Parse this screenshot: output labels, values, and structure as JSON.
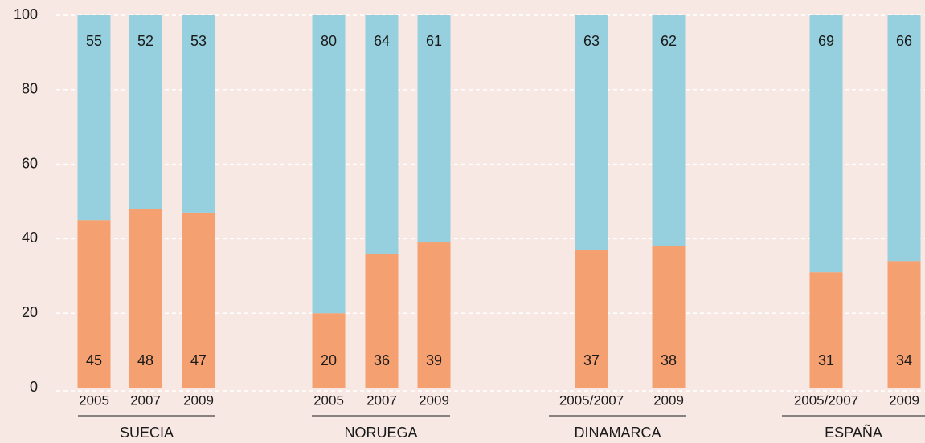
{
  "chart_data": {
    "type": "stacked_bar",
    "categories": [
      "2005",
      "2007",
      "2009",
      "2005",
      "2007",
      "2009",
      "2005/2007",
      "2009",
      "2005/2007",
      "2009"
    ],
    "groups": [
      "SUECIA",
      "NORUEGA",
      "DINAMARCA",
      "ESPAÑA"
    ],
    "series": [
      {
        "color": "#f4a070",
        "values": [
          45,
          48,
          47,
          20,
          36,
          39,
          37,
          38,
          31,
          34
        ]
      },
      {
        "color": "#96d0de",
        "values": [
          55,
          52,
          53,
          80,
          64,
          61,
          63,
          62,
          69,
          66
        ]
      }
    ],
    "ylim": [
      0,
      100
    ],
    "yticks": [
      0,
      20,
      40,
      60,
      80,
      100
    ],
    "grid": true
  }
}
